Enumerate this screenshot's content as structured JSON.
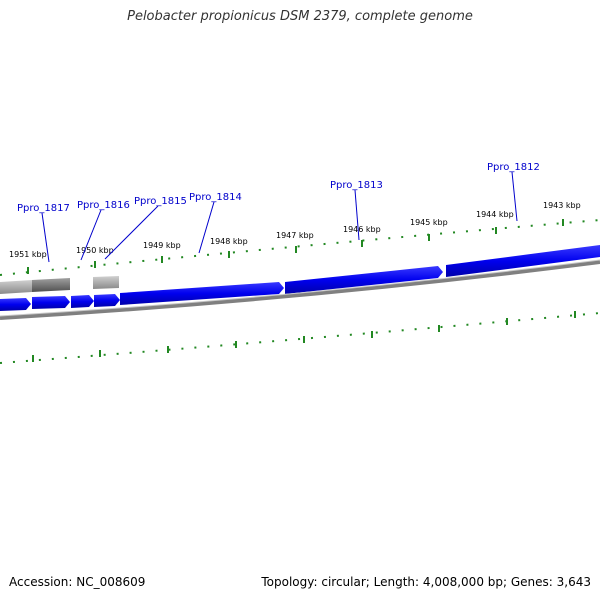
{
  "title": "Pelobacter propionicus DSM 2379, complete genome",
  "footer": {
    "accession": "Accession: NC_008609",
    "summary": "Topology: circular; Length: 4,008,000 bp; Genes: 3,643"
  },
  "colors": {
    "gene_forward": "#0000ff",
    "gene_reverse": "#0000ff",
    "tick": "#228822",
    "backbone": "#808080",
    "label": "#0000cc",
    "rna": "#888888"
  },
  "scale_labels": [
    "1951 kbp",
    "1950 kbp",
    "1949 kbp",
    "1948 kbp",
    "1947 kbp",
    "1946 kbp",
    "1945 kbp",
    "1944 kbp",
    "1943 kbp"
  ],
  "gene_labels": [
    "Ppro_1817",
    "Ppro_1816",
    "Ppro_1815",
    "Ppro_1814",
    "Ppro_1813",
    "Ppro_1812"
  ]
}
